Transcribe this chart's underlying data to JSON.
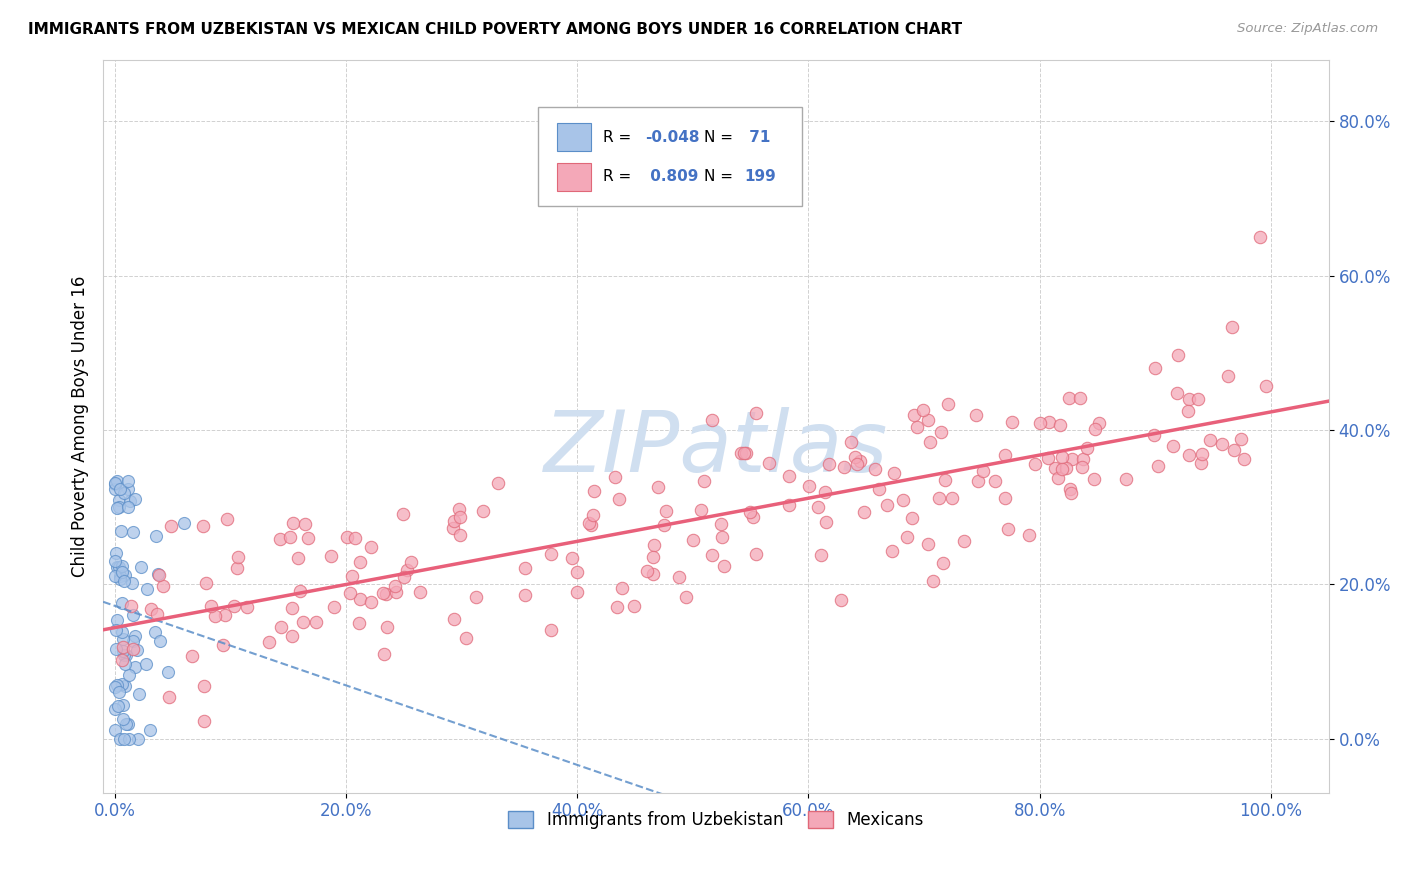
{
  "title": "IMMIGRANTS FROM UZBEKISTAN VS MEXICAN CHILD POVERTY AMONG BOYS UNDER 16 CORRELATION CHART",
  "source": "Source: ZipAtlas.com",
  "ylabel": "Child Poverty Among Boys Under 16",
  "ytick_labels": [
    "0.0%",
    "20.0%",
    "40.0%",
    "60.0%",
    "80.0%"
  ],
  "ytick_vals": [
    0.0,
    0.2,
    0.4,
    0.6,
    0.8
  ],
  "xtick_labels": [
    "0.0%",
    "20.0%",
    "40.0%",
    "60.0%",
    "80.0%",
    "100.0%"
  ],
  "xtick_vals": [
    0.0,
    0.2,
    0.4,
    0.6,
    0.8,
    1.0
  ],
  "color_uzbek_fill": "#a8c4e8",
  "color_uzbek_edge": "#5b8ec8",
  "color_mexican_fill": "#f4a8b8",
  "color_mexican_edge": "#e06878",
  "color_uzbek_line": "#5b8ec8",
  "color_mexican_line": "#e8607a",
  "watermark_color": "#d0dff0",
  "tick_color": "#4472c4",
  "grid_color": "#cccccc",
  "uzbek_seed": 12,
  "mexican_seed": 99,
  "n_uzbek": 71,
  "n_mexican": 199
}
